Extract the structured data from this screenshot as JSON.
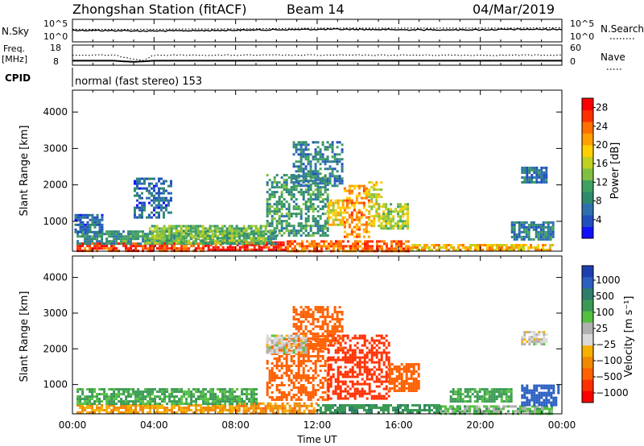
{
  "header": {
    "station": "Zhongshan Station (fitACF)",
    "beam": "Beam 14",
    "date": "04/Mar/2019"
  },
  "colors": {
    "power_scale": [
      "#1010ff",
      "#2050c0",
      "#2e6fb0",
      "#2f8a6a",
      "#3fa060",
      "#80c040",
      "#c0d020",
      "#ffd000",
      "#ffa000",
      "#ff7000",
      "#ff3000",
      "#ff0000"
    ],
    "velocity_scale": [
      "#1b3fb0",
      "#2b5fc0",
      "#2e7e6a",
      "#3a9a55",
      "#55c040",
      "#b0b0b0",
      "#d9d9d9",
      "#f5b000",
      "#f08800",
      "#ff6000",
      "#ff3000",
      "#ff0000"
    ]
  },
  "chart_data": [
    {
      "type": "line",
      "panel": "nsky-nsearch",
      "left_label": "N.Sky",
      "right_label": "N.Search",
      "left_ticks": [
        "10^5",
        "10^0"
      ],
      "right_ticks": [
        "10^5",
        "10^0"
      ],
      "series": [
        {
          "name": "N.Sky",
          "x_hours": [
            0,
            2,
            4,
            6,
            8,
            10,
            12,
            14,
            16,
            18,
            20,
            22,
            24
          ],
          "values": [
            2.6,
            2.5,
            2.4,
            2.5,
            2.6,
            2.7,
            2.8,
            2.8,
            2.7,
            2.7,
            2.7,
            2.8,
            2.8
          ]
        },
        {
          "name": "N.Search",
          "x_hours": [
            0,
            2,
            4,
            6,
            8,
            10,
            12,
            14,
            16,
            18,
            20,
            22,
            24
          ],
          "values": [
            2.8,
            2.8,
            2.8,
            2.9,
            2.9,
            3.0,
            3.1,
            3.1,
            3.1,
            3.1,
            3.1,
            3.1,
            3.2
          ]
        }
      ]
    },
    {
      "type": "line",
      "panel": "freq-nave",
      "left_label": "Freq.\n[MHz]",
      "right_label": "Nave",
      "left_ticks": [
        "18",
        "8"
      ],
      "right_ticks": [
        "60",
        "0"
      ],
      "series": [
        {
          "name": "Freq",
          "x_hours": [
            0,
            2,
            3,
            4,
            6,
            8,
            12,
            16,
            20,
            24
          ],
          "values": [
            10.0,
            10.0,
            9.4,
            10.0,
            10.0,
            10.0,
            10.0,
            10.0,
            10.0,
            10.0
          ]
        },
        {
          "name": "Nave",
          "x_hours": [
            0,
            2,
            3,
            3.5,
            4,
            6,
            8,
            12,
            16,
            20,
            24
          ],
          "values": [
            30,
            30,
            18,
            14,
            30,
            30,
            30,
            30,
            30,
            30,
            30
          ]
        }
      ]
    },
    {
      "type": "heatmap",
      "panel": "power",
      "cpid_label": "CPID",
      "cpid_text": "normal (fast stereo) 153",
      "ylabel": "Slant Range [km]",
      "yticks": [
        1000,
        2000,
        3000,
        4000
      ],
      "ylim": [
        180,
        4600
      ],
      "xlim_hours": [
        0,
        24
      ],
      "colorbar_label": "Power [dB]",
      "colorbar_ticks": [
        4,
        8,
        12,
        16,
        20,
        24,
        28
      ],
      "colorbar_range": [
        0,
        30
      ],
      "regions": [
        {
          "t0": 0.2,
          "t1": 6.5,
          "r0": 200,
          "r1": 420,
          "value": 26
        },
        {
          "t0": 6.5,
          "t1": 10.5,
          "r0": 200,
          "r1": 450,
          "value": 28
        },
        {
          "t0": 10.5,
          "t1": 16.5,
          "r0": 200,
          "r1": 480,
          "value": 24
        },
        {
          "t0": 16.5,
          "t1": 23.5,
          "r0": 200,
          "r1": 380,
          "value": 20
        },
        {
          "t0": 0.2,
          "t1": 10,
          "r0": 400,
          "r1": 750,
          "value": 9
        },
        {
          "t0": 3.5,
          "t1": 9.5,
          "r0": 400,
          "r1": 900,
          "value": 13
        },
        {
          "t0": 9.5,
          "t1": 12.5,
          "r0": 600,
          "r1": 2300,
          "value": 10
        },
        {
          "t0": 12.5,
          "t1": 13.3,
          "r0": 900,
          "r1": 1600,
          "value": 18
        },
        {
          "t0": 13.3,
          "t1": 14.5,
          "r0": 600,
          "r1": 2000,
          "value": 22
        },
        {
          "t0": 14.5,
          "t1": 15.2,
          "r0": 800,
          "r1": 2100,
          "value": 17
        },
        {
          "t0": 15.2,
          "t1": 16.5,
          "r0": 800,
          "r1": 1500,
          "value": 15
        },
        {
          "t0": 10.8,
          "t1": 13.2,
          "r0": 2000,
          "r1": 3200,
          "value": 8
        },
        {
          "t0": 3.0,
          "t1": 4.8,
          "r0": 1100,
          "r1": 2200,
          "value": 6
        },
        {
          "t0": 22.0,
          "t1": 23.2,
          "r0": 2100,
          "r1": 2500,
          "value": 7
        },
        {
          "t0": 21.5,
          "t1": 23.6,
          "r0": 500,
          "r1": 1000,
          "value": 8
        },
        {
          "t0": 0.1,
          "t1": 1.5,
          "r0": 700,
          "r1": 1200,
          "value": 6
        }
      ]
    },
    {
      "type": "heatmap",
      "panel": "velocity",
      "ylabel": "Slant Range [km]",
      "yticks": [
        1000,
        2000,
        3000,
        4000
      ],
      "ylim": [
        180,
        4600
      ],
      "xlim_hours": [
        0,
        24
      ],
      "xlabel": "Time UT",
      "xtick_labels": [
        "00:00",
        "04:00",
        "08:00",
        "12:00",
        "16:00",
        "20:00",
        "00:00"
      ],
      "colorbar_label": "Velocity [m s⁻¹]",
      "colorbar_ticks": [
        "1000",
        "500",
        "100",
        "25",
        "−25",
        "−100",
        "−500",
        "−1000"
      ],
      "regions": [
        {
          "t0": 0.2,
          "t1": 8,
          "r0": 200,
          "r1": 450,
          "value": -60
        },
        {
          "t0": 8,
          "t1": 12,
          "r0": 200,
          "r1": 500,
          "value": -80
        },
        {
          "t0": 0.2,
          "t1": 9,
          "r0": 450,
          "r1": 900,
          "value": 60
        },
        {
          "t0": 12,
          "t1": 18,
          "r0": 200,
          "r1": 450,
          "value": 80
        },
        {
          "t0": 18,
          "t1": 23.5,
          "r0": 200,
          "r1": 420,
          "value": 30
        },
        {
          "t0": 9.5,
          "t1": 12.5,
          "r0": 600,
          "r1": 2300,
          "value": -200
        },
        {
          "t0": 12.5,
          "t1": 15.5,
          "r0": 600,
          "r1": 2400,
          "value": -400
        },
        {
          "t0": 15.5,
          "t1": 17.0,
          "r0": 800,
          "r1": 1600,
          "value": -150
        },
        {
          "t0": 10.8,
          "t1": 13.2,
          "r0": 2000,
          "r1": 3200,
          "value": -150
        },
        {
          "t0": 9.5,
          "t1": 11.5,
          "r0": 1900,
          "r1": 2400,
          "value": 0
        },
        {
          "t0": 22.0,
          "t1": 23.2,
          "r0": 2100,
          "r1": 2500,
          "value": 0
        },
        {
          "t0": 22.0,
          "t1": 23.8,
          "r0": 400,
          "r1": 1000,
          "value": 400
        },
        {
          "t0": 18.5,
          "t1": 21.5,
          "r0": 500,
          "r1": 900,
          "value": 60
        }
      ]
    }
  ]
}
